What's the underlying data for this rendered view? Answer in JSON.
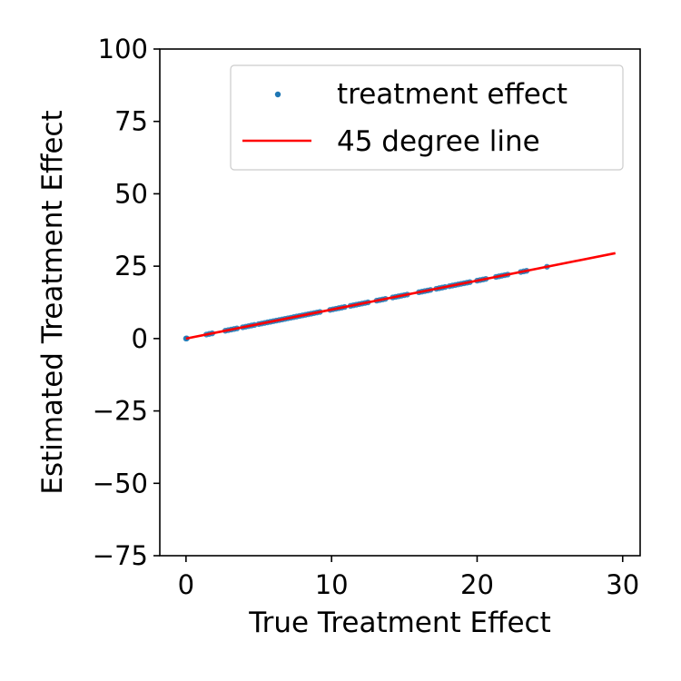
{
  "chart_data": {
    "type": "scatter",
    "title": "",
    "xlabel": "True Treatment Effect",
    "ylabel": "Estimated Treatment Effect",
    "xlim": [
      -1.8,
      31.2
    ],
    "ylim": [
      -75,
      100
    ],
    "xticks": [
      0,
      10,
      20,
      30
    ],
    "yticks": [
      -75,
      -50,
      -25,
      0,
      25,
      50,
      75,
      100
    ],
    "xtick_labels": [
      "0",
      "10",
      "20",
      "30"
    ],
    "ytick_labels": [
      "−75",
      "−50",
      "−25",
      "0",
      "25",
      "50",
      "75",
      "100"
    ],
    "grid": false,
    "legend_position": "top-right",
    "series": [
      {
        "name": "treatment effect",
        "kind": "scatter",
        "color": "#1f77b4",
        "x": [
          0.0,
          0.05,
          1.4,
          1.6,
          1.8,
          2.7,
          2.9,
          3.1,
          3.3,
          3.5,
          3.9,
          4.1,
          4.3,
          4.5,
          4.7,
          5.0,
          5.2,
          5.4,
          5.6,
          5.8,
          6.0,
          6.2,
          6.4,
          6.6,
          6.8,
          7.0,
          7.2,
          7.4,
          7.6,
          7.8,
          8.0,
          8.2,
          8.4,
          8.6,
          8.8,
          9.0,
          9.2,
          9.9,
          10.1,
          10.3,
          10.5,
          10.7,
          10.9,
          11.3,
          11.5,
          11.7,
          11.9,
          12.1,
          12.3,
          12.5,
          13.1,
          13.3,
          13.5,
          13.7,
          14.2,
          14.4,
          14.6,
          14.8,
          15.0,
          15.2,
          16.0,
          16.2,
          16.4,
          16.6,
          16.8,
          17.2,
          17.4,
          17.6,
          17.8,
          18.1,
          18.3,
          18.5,
          18.7,
          18.9,
          19.1,
          19.3,
          19.5,
          20.0,
          20.2,
          20.4,
          20.6,
          21.3,
          21.5,
          21.7,
          21.9,
          22.1,
          23.0,
          23.2,
          23.4,
          24.8
        ],
        "y": [
          0.0,
          0.05,
          1.4,
          1.6,
          1.8,
          2.7,
          2.9,
          3.1,
          3.3,
          3.5,
          3.9,
          4.1,
          4.3,
          4.5,
          4.7,
          5.0,
          5.2,
          5.4,
          5.6,
          5.8,
          6.0,
          6.2,
          6.4,
          6.6,
          6.8,
          7.0,
          7.2,
          7.4,
          7.6,
          7.8,
          8.0,
          8.2,
          8.4,
          8.6,
          8.8,
          9.0,
          9.2,
          9.9,
          10.1,
          10.3,
          10.5,
          10.7,
          10.9,
          11.3,
          11.5,
          11.7,
          11.9,
          12.1,
          12.3,
          12.5,
          13.1,
          13.3,
          13.5,
          13.7,
          14.2,
          14.4,
          14.6,
          14.8,
          15.0,
          15.2,
          16.0,
          16.2,
          16.4,
          16.6,
          16.8,
          17.2,
          17.4,
          17.6,
          17.8,
          18.1,
          18.3,
          18.5,
          18.7,
          18.9,
          19.1,
          19.3,
          19.5,
          20.0,
          20.2,
          20.4,
          20.6,
          21.3,
          21.5,
          21.7,
          21.9,
          22.1,
          23.0,
          23.2,
          23.4,
          24.8
        ]
      },
      {
        "name": "45 degree line",
        "kind": "line",
        "color": "#ff0000",
        "x": [
          0,
          29.5
        ],
        "y": [
          0,
          29.5
        ]
      }
    ]
  }
}
